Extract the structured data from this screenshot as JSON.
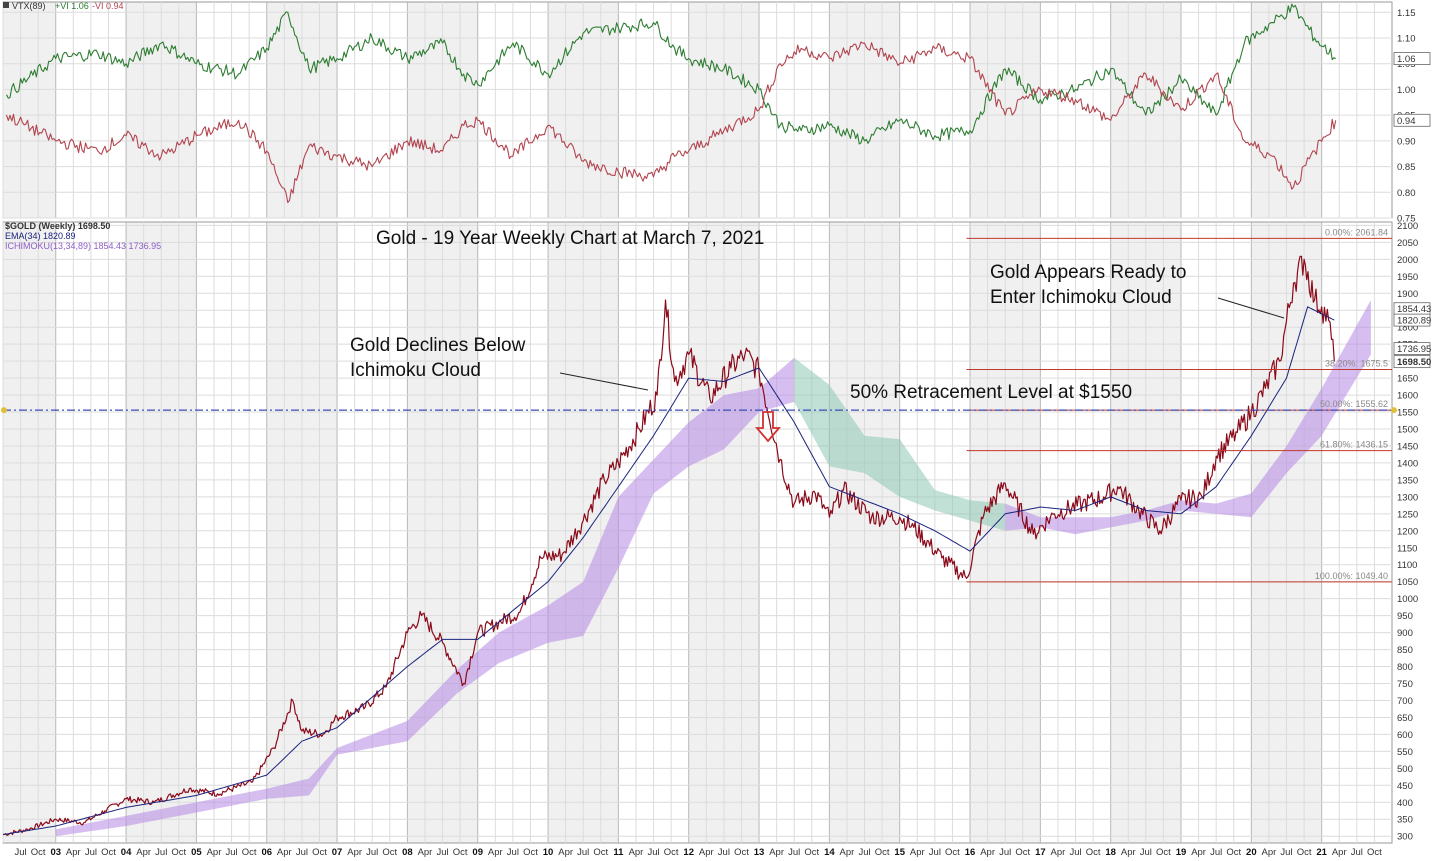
{
  "chart_data": [
    {
      "type": "line",
      "panel": "vortex-indicator",
      "legend": {
        "label": "VTX(89)",
        "vi_plus": "+VI 1.06",
        "vi_minus": "-VI 0.94"
      },
      "ylim": [
        0.75,
        1.17
      ],
      "yticks": [
        0.75,
        0.8,
        0.85,
        0.9,
        0.95,
        1.0,
        1.05,
        1.1,
        1.15
      ],
      "ytick_labels": [
        "0.75",
        "0.80",
        "0.85",
        "0.90",
        "0.95",
        "1.00",
        "1.05",
        "1.10",
        "1.15"
      ],
      "last_labels": {
        "vi_plus": "1.06",
        "vi_minus": "0.94"
      },
      "series": [
        {
          "name": "+VI",
          "color": "#2e7d32",
          "x": [
            2002.3,
            2003.0,
            2003.6,
            2004.0,
            2004.5,
            2005.0,
            2005.6,
            2006.0,
            2006.3,
            2006.6,
            2007.0,
            2007.5,
            2008.0,
            2008.5,
            2008.8,
            2009.0,
            2009.5,
            2010.0,
            2010.5,
            2011.0,
            2011.5,
            2011.8,
            2012.0,
            2012.5,
            2013.0,
            2013.3,
            2013.6,
            2014.0,
            2014.5,
            2015.0,
            2015.5,
            2016.0,
            2016.5,
            2017.0,
            2017.5,
            2018.0,
            2018.5,
            2019.0,
            2019.5,
            2019.9,
            2020.3,
            2020.6,
            2020.9,
            2021.2
          ],
          "values": [
            0.99,
            1.06,
            1.07,
            1.05,
            1.09,
            1.05,
            1.03,
            1.08,
            1.15,
            1.04,
            1.06,
            1.1,
            1.06,
            1.09,
            1.03,
            1.01,
            1.09,
            1.03,
            1.11,
            1.12,
            1.13,
            1.08,
            1.06,
            1.04,
            1.0,
            0.93,
            0.92,
            0.93,
            0.9,
            0.94,
            0.91,
            0.92,
            1.04,
            0.98,
            1.0,
            1.04,
            0.95,
            1.02,
            0.95,
            1.09,
            1.13,
            1.16,
            1.1,
            1.06
          ]
        },
        {
          "name": "-VI",
          "color": "#b2444f",
          "x": [
            2002.3,
            2003.0,
            2003.6,
            2004.0,
            2004.5,
            2005.0,
            2005.6,
            2006.0,
            2006.3,
            2006.6,
            2007.0,
            2007.5,
            2008.0,
            2008.5,
            2008.8,
            2009.0,
            2009.5,
            2010.0,
            2010.5,
            2011.0,
            2011.5,
            2011.8,
            2012.0,
            2012.5,
            2013.0,
            2013.3,
            2013.6,
            2014.0,
            2014.5,
            2015.0,
            2015.5,
            2016.0,
            2016.5,
            2017.0,
            2017.5,
            2018.0,
            2018.5,
            2019.0,
            2019.5,
            2019.9,
            2020.3,
            2020.6,
            2020.9,
            2021.2
          ],
          "values": [
            0.95,
            0.9,
            0.88,
            0.91,
            0.87,
            0.91,
            0.94,
            0.88,
            0.78,
            0.89,
            0.87,
            0.85,
            0.9,
            0.88,
            0.93,
            0.94,
            0.87,
            0.93,
            0.86,
            0.84,
            0.83,
            0.87,
            0.88,
            0.92,
            0.96,
            1.05,
            1.08,
            1.06,
            1.09,
            1.05,
            1.08,
            1.06,
            0.95,
            1.0,
            0.98,
            0.94,
            1.03,
            0.96,
            1.03,
            0.9,
            0.87,
            0.81,
            0.88,
            0.94
          ]
        }
      ]
    },
    {
      "type": "line",
      "panel": "price",
      "title": "Gold - 19 Year Weekly Chart at March 7, 2021",
      "legend": {
        "symbol": "$GOLD (Weekly) 1698.50",
        "ema": "EMA(34) 1820.89",
        "ichimoku": "ICHIMOKU(13,34,89) 1854.43 1736.95"
      },
      "ylim": [
        280,
        2110
      ],
      "yticks": [
        300,
        350,
        400,
        450,
        500,
        550,
        600,
        650,
        700,
        750,
        800,
        850,
        900,
        950,
        1000,
        1050,
        1100,
        1150,
        1200,
        1250,
        1300,
        1350,
        1400,
        1450,
        1500,
        1550,
        1600,
        1650,
        1700,
        1750,
        1800,
        1850,
        1900,
        1950,
        2000,
        2050,
        2100
      ],
      "ytick_labels": [
        "300",
        "350",
        "400",
        "450",
        "500",
        "550",
        "600",
        "650",
        "700",
        "750",
        "800",
        "850",
        "900",
        "950",
        "1000",
        "1050",
        "1100",
        "1150",
        "1200",
        "1250",
        "1300",
        "1350",
        "1400",
        "1450",
        "1500",
        "1550",
        "1600",
        "1650",
        "1700",
        "1750",
        "1800",
        "1850",
        "1900",
        "1950",
        "2000",
        "2050",
        "2100"
      ],
      "last_labels": {
        "cloud_top": "1854.43",
        "ema": "1820.89",
        "cloud_bottom": "1736.95",
        "price": "1698.50"
      },
      "xlim": [
        2002.25,
        2022.0
      ],
      "year_ticks": [
        {
          "x": 2003.0,
          "label": "03"
        },
        {
          "x": 2004.0,
          "label": "04"
        },
        {
          "x": 2005.0,
          "label": "05"
        },
        {
          "x": 2006.0,
          "label": "06"
        },
        {
          "x": 2007.0,
          "label": "07"
        },
        {
          "x": 2008.0,
          "label": "08"
        },
        {
          "x": 2009.0,
          "label": "09"
        },
        {
          "x": 2010.0,
          "label": "10"
        },
        {
          "x": 2011.0,
          "label": "11"
        },
        {
          "x": 2012.0,
          "label": "12"
        },
        {
          "x": 2013.0,
          "label": "13"
        },
        {
          "x": 2014.0,
          "label": "14"
        },
        {
          "x": 2015.0,
          "label": "15"
        },
        {
          "x": 2016.0,
          "label": "16"
        },
        {
          "x": 2017.0,
          "label": "17"
        },
        {
          "x": 2018.0,
          "label": "18"
        },
        {
          "x": 2019.0,
          "label": "19"
        },
        {
          "x": 2020.0,
          "label": "20"
        },
        {
          "x": 2021.0,
          "label": "21"
        }
      ],
      "month_labels": [
        "Apr",
        "Jul",
        "Oct"
      ],
      "series": [
        {
          "name": "$GOLD",
          "color": "#8b0a1a",
          "x": [
            2002.25,
            2002.6,
            2003.0,
            2003.4,
            2003.7,
            2004.0,
            2004.4,
            2004.9,
            2005.3,
            2005.8,
            2006.1,
            2006.37,
            2006.5,
            2006.8,
            2007.0,
            2007.4,
            2007.7,
            2008.0,
            2008.2,
            2008.5,
            2008.8,
            2009.0,
            2009.3,
            2009.6,
            2009.9,
            2010.2,
            2010.5,
            2010.8,
            2011.0,
            2011.3,
            2011.55,
            2011.67,
            2011.8,
            2012.0,
            2012.3,
            2012.6,
            2012.8,
            2013.0,
            2013.3,
            2013.5,
            2013.8,
            2014.0,
            2014.2,
            2014.6,
            2015.0,
            2015.2,
            2015.6,
            2015.95,
            2016.2,
            2016.5,
            2016.9,
            2017.2,
            2017.6,
            2017.9,
            2018.1,
            2018.4,
            2018.7,
            2019.0,
            2019.3,
            2019.5,
            2019.8,
            2020.0,
            2020.2,
            2020.4,
            2020.6,
            2020.75,
            2020.9,
            2021.0,
            2021.1,
            2021.18
          ],
          "values": [
            305,
            320,
            350,
            340,
            375,
            410,
            400,
            440,
            425,
            460,
            560,
            700,
            610,
            600,
            650,
            680,
            740,
            900,
            950,
            870,
            750,
            900,
            930,
            960,
            1120,
            1130,
            1230,
            1350,
            1400,
            1500,
            1600,
            1880,
            1640,
            1720,
            1590,
            1680,
            1720,
            1670,
            1410,
            1280,
            1310,
            1240,
            1320,
            1240,
            1240,
            1210,
            1120,
            1060,
            1250,
            1340,
            1190,
            1250,
            1280,
            1300,
            1330,
            1260,
            1200,
            1290,
            1300,
            1420,
            1490,
            1550,
            1620,
            1700,
            1930,
            2000,
            1880,
            1860,
            1820,
            1698.5
          ]
        },
        {
          "name": "EMA(34)",
          "color": "#1a237e",
          "x": [
            2002.25,
            2003.0,
            2004.0,
            2005.0,
            2006.0,
            2006.5,
            2007.0,
            2008.0,
            2008.5,
            2009.0,
            2010.0,
            2010.5,
            2011.0,
            2011.5,
            2012.0,
            2012.5,
            2013.0,
            2013.5,
            2014.0,
            2014.5,
            2015.0,
            2015.5,
            2016.0,
            2016.5,
            2017.0,
            2017.5,
            2018.0,
            2018.5,
            2019.0,
            2019.5,
            2020.0,
            2020.5,
            2020.8,
            2021.18
          ],
          "values": [
            305,
            330,
            385,
            420,
            480,
            580,
            620,
            800,
            880,
            880,
            1050,
            1180,
            1330,
            1480,
            1650,
            1640,
            1680,
            1520,
            1330,
            1290,
            1250,
            1200,
            1140,
            1250,
            1270,
            1260,
            1300,
            1260,
            1250,
            1330,
            1480,
            1650,
            1860,
            1820.89
          ]
        }
      ],
      "ichimoku_cloud": {
        "x": [
          2003.0,
          2004.0,
          2005.0,
          2006.0,
          2006.6,
          2007.0,
          2008.0,
          2008.7,
          2009.3,
          2010.0,
          2010.5,
          2011.0,
          2011.5,
          2012.0,
          2012.5,
          2013.0,
          2013.5,
          2014.0,
          2014.5,
          2015.0,
          2015.5,
          2016.0,
          2016.5,
          2017.0,
          2017.5,
          2018.0,
          2018.5,
          2019.0,
          2019.5,
          2020.0,
          2020.5,
          2021.0,
          2021.7
        ],
        "upper": [
          320,
          360,
          400,
          440,
          470,
          560,
          640,
          790,
          900,
          980,
          1050,
          1300,
          1410,
          1520,
          1600,
          1620,
          1710,
          1630,
          1480,
          1470,
          1320,
          1290,
          1280,
          1240,
          1240,
          1240,
          1260,
          1290,
          1280,
          1310,
          1450,
          1620,
          1880
        ],
        "lower": [
          300,
          330,
          370,
          410,
          420,
          540,
          580,
          720,
          810,
          870,
          890,
          1090,
          1310,
          1390,
          1440,
          1550,
          1580,
          1390,
          1370,
          1300,
          1260,
          1230,
          1200,
          1210,
          1190,
          1210,
          1230,
          1260,
          1250,
          1240,
          1370,
          1480,
          1720
        ],
        "bullish_color": "#b48be3",
        "bearish_color": "#8ec9b5"
      },
      "fib_levels": [
        {
          "value": 2061.84,
          "label": "0.00%: 2061.84"
        },
        {
          "value": 1675.5,
          "label": "38.20%: 1675.5"
        },
        {
          "value": 1555.62,
          "label": "50.00%: 1555.62"
        },
        {
          "value": 1436.15,
          "label": "61.80%: 1436.15"
        },
        {
          "value": 1049.4,
          "label": "100.00%: 1049.40"
        }
      ],
      "horizontal_line": {
        "value": 1555.62
      },
      "annotations": [
        {
          "id": "declines",
          "lines": [
            "Gold Declines Below",
            "Ichimoku Cloud"
          ]
        },
        {
          "id": "ready",
          "lines": [
            "Gold Appears Ready to",
            "Enter Ichimoku Cloud"
          ]
        },
        {
          "id": "retrace",
          "lines": [
            "50% Retracement Level at $1550"
          ]
        }
      ],
      "colors": {
        "fib_line": "#c0392b",
        "horizontal_line": "#3b4cb8",
        "arrow": "#d32f2f"
      }
    }
  ]
}
